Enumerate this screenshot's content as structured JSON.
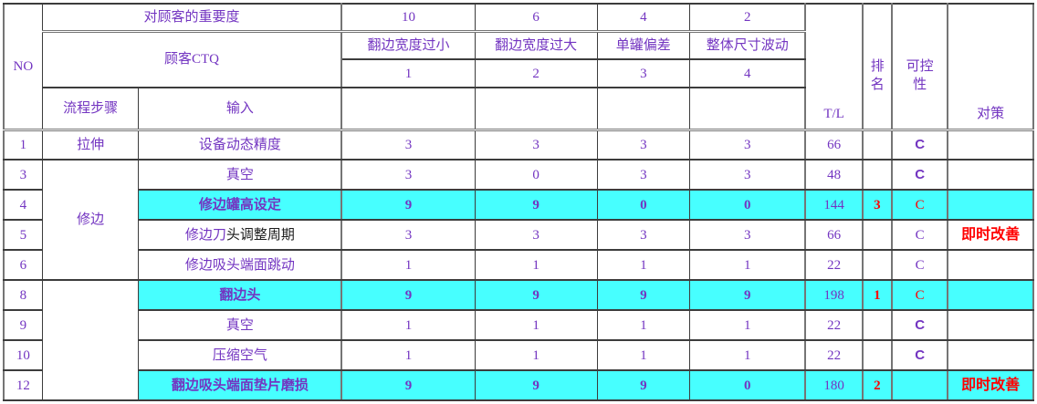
{
  "header": {
    "no": "NO",
    "importance_label": "对顾客的重要度",
    "importance_values": [
      "10",
      "6",
      "4",
      "2"
    ],
    "ctq_label": "顾客CTQ",
    "ctq_names": [
      "翻边宽度过小",
      "翻边宽度过大",
      "单罐偏差",
      "整体尺寸波动"
    ],
    "ctq_numbers": [
      "1",
      "2",
      "3",
      "4"
    ],
    "process_step": "流程步骤",
    "input": "输入",
    "tl": "T/L",
    "rank": "排名",
    "controllability": "可控性",
    "countermeasure": "对策"
  },
  "colors": {
    "text_purple": "#7335C1",
    "text_black": "#1b1b1b",
    "text_red": "#FF0000",
    "highlight_cyan": "#47FFFF"
  },
  "rows": [
    {
      "no": "1",
      "step": "拉伸",
      "step_span": 1,
      "input_parts": [
        {
          "t": "设备动态精度",
          "c": "purple"
        }
      ],
      "input_bold": false,
      "highlight": false,
      "scores": [
        "3",
        "3",
        "3",
        "3"
      ],
      "tl": "66",
      "rank": "",
      "ctrl": "C",
      "ctrl_style": "bold-purple",
      "measure": ""
    },
    {
      "no": "3",
      "step": "修边",
      "step_span": 4,
      "input_parts": [
        {
          "t": "真空",
          "c": "purple"
        }
      ],
      "input_bold": false,
      "highlight": false,
      "scores": [
        "3",
        "0",
        "3",
        "3"
      ],
      "tl": "48",
      "rank": "",
      "ctrl": "C",
      "ctrl_style": "bold-purple",
      "measure": ""
    },
    {
      "no": "4",
      "step": null,
      "input_parts": [
        {
          "t": "修边罐高设定",
          "c": "purple"
        }
      ],
      "input_bold": true,
      "highlight": true,
      "scores": [
        "9",
        "9",
        "0",
        "0"
      ],
      "tl": "144",
      "rank": "3",
      "ctrl": "C",
      "ctrl_style": "red",
      "measure": ""
    },
    {
      "no": "5",
      "step": null,
      "input_parts": [
        {
          "t": "修边刀",
          "c": "purple"
        },
        {
          "t": "头调整周期",
          "c": "black"
        }
      ],
      "input_bold": false,
      "highlight": false,
      "scores": [
        "3",
        "3",
        "3",
        "3"
      ],
      "tl": "66",
      "rank": "",
      "ctrl": "C",
      "ctrl_style": "purple",
      "measure": "即时改善"
    },
    {
      "no": "6",
      "step": null,
      "input_parts": [
        {
          "t": "修边吸头端面跳动",
          "c": "purple"
        }
      ],
      "input_bold": false,
      "highlight": false,
      "scores": [
        "1",
        "1",
        "1",
        "1"
      ],
      "tl": "22",
      "rank": "",
      "ctrl": "C",
      "ctrl_style": "purple",
      "measure": ""
    },
    {
      "no": "8",
      "step": "",
      "step_span": 4,
      "input_parts": [
        {
          "t": "翻边头",
          "c": "purple"
        }
      ],
      "input_bold": true,
      "highlight": true,
      "scores": [
        "9",
        "9",
        "9",
        "9"
      ],
      "tl": "198",
      "rank": "1",
      "ctrl": "C",
      "ctrl_style": "red",
      "measure": ""
    },
    {
      "no": "9",
      "step": null,
      "input_parts": [
        {
          "t": "真空",
          "c": "purple"
        }
      ],
      "input_bold": false,
      "highlight": false,
      "scores": [
        "1",
        "1",
        "1",
        "1"
      ],
      "tl": "22",
      "rank": "",
      "ctrl": "C",
      "ctrl_style": "bold-purple",
      "measure": ""
    },
    {
      "no": "10",
      "step": null,
      "input_parts": [
        {
          "t": "压缩空气",
          "c": "purple"
        }
      ],
      "input_bold": false,
      "highlight": false,
      "scores": [
        "1",
        "1",
        "1",
        "1"
      ],
      "tl": "22",
      "rank": "",
      "ctrl": "C",
      "ctrl_style": "bold-purple",
      "measure": ""
    },
    {
      "no": "12",
      "step": null,
      "input_parts": [
        {
          "t": "翻边吸头端面垫片磨损",
          "c": "purple"
        }
      ],
      "input_bold": true,
      "highlight": true,
      "scores": [
        "9",
        "9",
        "9",
        "0"
      ],
      "tl": "180",
      "rank": "2",
      "ctrl": "",
      "ctrl_style": "",
      "measure": "即时改善"
    }
  ]
}
